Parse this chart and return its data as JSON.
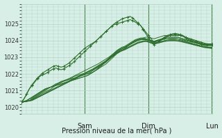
{
  "bg_color": "#d8efe8",
  "grid_color": "#b0d4c4",
  "line_color": "#2d6e2d",
  "xlabel": "Pression niveau de la mer( hPa )",
  "ylim": [
    1019.6,
    1026.2
  ],
  "yticks": [
    1020,
    1021,
    1022,
    1023,
    1024,
    1025
  ],
  "day_labels": [
    "Sam",
    "Dim",
    "Lun"
  ],
  "day_positions": [
    0.333,
    0.666,
    0.999
  ],
  "total_points": 73,
  "series": [
    [
      1020.3,
      1020.35,
      1020.4,
      1020.5,
      1020.6,
      1020.7,
      1020.8,
      1020.9,
      1021.0,
      1021.1,
      1021.15,
      1021.2,
      1021.3,
      1021.4,
      1021.45,
      1021.5,
      1021.55,
      1021.6,
      1021.65,
      1021.7,
      1021.75,
      1021.8,
      1021.85,
      1021.9,
      1021.95,
      1022.0,
      1022.1,
      1022.2,
      1022.3,
      1022.4,
      1022.5,
      1022.6,
      1022.7,
      1022.85,
      1023.0,
      1023.15,
      1023.3,
      1023.4,
      1023.5,
      1023.6,
      1023.7,
      1023.8,
      1023.9,
      1024.0,
      1024.05,
      1024.1,
      1024.15,
      1024.2,
      1024.2,
      1024.15,
      1024.1,
      1024.15,
      1024.2,
      1024.25,
      1024.3,
      1024.3,
      1024.3,
      1024.3,
      1024.3,
      1024.3,
      1024.3,
      1024.25,
      1024.2,
      1024.15,
      1024.1,
      1024.05,
      1024.0,
      1023.95,
      1023.9,
      1023.85,
      1023.8,
      1023.8,
      1023.8
    ],
    [
      1020.3,
      1020.35,
      1020.4,
      1020.5,
      1020.6,
      1020.7,
      1020.8,
      1020.9,
      1021.0,
      1021.1,
      1021.15,
      1021.2,
      1021.25,
      1021.35,
      1021.45,
      1021.55,
      1021.6,
      1021.65,
      1021.7,
      1021.75,
      1021.85,
      1021.9,
      1021.95,
      1022.0,
      1022.0,
      1022.0,
      1022.05,
      1022.1,
      1022.2,
      1022.3,
      1022.4,
      1022.5,
      1022.6,
      1022.75,
      1022.9,
      1023.05,
      1023.2,
      1023.3,
      1023.4,
      1023.5,
      1023.65,
      1023.8,
      1023.9,
      1024.0,
      1024.05,
      1024.1,
      1024.1,
      1024.1,
      1024.05,
      1024.0,
      1023.95,
      1024.0,
      1024.05,
      1024.1,
      1024.15,
      1024.2,
      1024.2,
      1024.2,
      1024.2,
      1024.2,
      1024.15,
      1024.1,
      1024.05,
      1024.0,
      1023.95,
      1023.9,
      1023.9,
      1023.85,
      1023.8,
      1023.75,
      1023.75,
      1023.75,
      1023.75
    ],
    [
      1020.3,
      1020.35,
      1020.4,
      1020.5,
      1020.55,
      1020.65,
      1020.75,
      1020.85,
      1020.95,
      1021.05,
      1021.15,
      1021.2,
      1021.25,
      1021.3,
      1021.35,
      1021.4,
      1021.45,
      1021.5,
      1021.55,
      1021.6,
      1021.65,
      1021.7,
      1021.75,
      1021.8,
      1021.85,
      1021.9,
      1022.0,
      1022.1,
      1022.2,
      1022.3,
      1022.45,
      1022.6,
      1022.75,
      1022.9,
      1023.05,
      1023.2,
      1023.35,
      1023.45,
      1023.5,
      1023.55,
      1023.65,
      1023.75,
      1023.85,
      1023.95,
      1024.0,
      1024.05,
      1024.05,
      1024.05,
      1024.0,
      1023.95,
      1023.9,
      1023.95,
      1024.0,
      1024.05,
      1024.1,
      1024.1,
      1024.1,
      1024.1,
      1024.1,
      1024.1,
      1024.05,
      1024.0,
      1023.95,
      1023.9,
      1023.85,
      1023.8,
      1023.75,
      1023.7,
      1023.65,
      1023.6,
      1023.6,
      1023.6,
      1023.6
    ],
    [
      1020.3,
      1020.33,
      1020.36,
      1020.4,
      1020.5,
      1020.6,
      1020.7,
      1020.8,
      1020.9,
      1021.0,
      1021.1,
      1021.2,
      1021.25,
      1021.3,
      1021.35,
      1021.4,
      1021.45,
      1021.5,
      1021.55,
      1021.6,
      1021.65,
      1021.7,
      1021.75,
      1021.8,
      1021.85,
      1021.9,
      1022.0,
      1022.1,
      1022.2,
      1022.35,
      1022.5,
      1022.65,
      1022.8,
      1022.95,
      1023.1,
      1023.25,
      1023.4,
      1023.5,
      1023.6,
      1023.65,
      1023.75,
      1023.85,
      1023.95,
      1024.05,
      1024.1,
      1024.15,
      1024.15,
      1024.1,
      1024.05,
      1024.0,
      1023.95,
      1024.0,
      1024.05,
      1024.1,
      1024.15,
      1024.2,
      1024.2,
      1024.2,
      1024.2,
      1024.2,
      1024.15,
      1024.1,
      1024.05,
      1024.0,
      1023.95,
      1023.9,
      1023.85,
      1023.8,
      1023.75,
      1023.7,
      1023.7,
      1023.7,
      1023.7
    ],
    [
      1020.3,
      1020.33,
      1020.36,
      1020.4,
      1020.48,
      1020.56,
      1020.65,
      1020.74,
      1020.83,
      1020.92,
      1021.0,
      1021.08,
      1021.2,
      1021.32,
      1021.4,
      1021.48,
      1021.56,
      1021.64,
      1021.72,
      1021.8,
      1021.88,
      1021.96,
      1022.04,
      1022.12,
      1022.2,
      1022.28,
      1022.36,
      1022.44,
      1022.52,
      1022.6,
      1022.7,
      1022.8,
      1022.9,
      1023.0,
      1023.12,
      1023.24,
      1023.36,
      1023.48,
      1023.56,
      1023.6,
      1023.68,
      1023.76,
      1023.84,
      1023.92,
      1024.0,
      1024.04,
      1024.08,
      1024.08,
      1024.04,
      1024.0,
      1023.92,
      1023.96,
      1024.0,
      1024.04,
      1024.08,
      1024.1,
      1024.12,
      1024.12,
      1024.12,
      1024.1,
      1024.08,
      1024.04,
      1024.0,
      1023.96,
      1023.92,
      1023.88,
      1023.84,
      1023.8,
      1023.76,
      1023.72,
      1023.7,
      1023.7,
      1023.7
    ],
    [
      1020.3,
      1020.33,
      1020.36,
      1020.4,
      1020.45,
      1020.52,
      1020.6,
      1020.68,
      1020.76,
      1020.85,
      1020.94,
      1021.02,
      1021.1,
      1021.18,
      1021.26,
      1021.34,
      1021.42,
      1021.5,
      1021.58,
      1021.66,
      1021.74,
      1021.82,
      1021.9,
      1021.98,
      1022.06,
      1022.14,
      1022.22,
      1022.3,
      1022.4,
      1022.5,
      1022.6,
      1022.7,
      1022.8,
      1022.92,
      1023.04,
      1023.16,
      1023.28,
      1023.38,
      1023.44,
      1023.5,
      1023.58,
      1023.66,
      1023.74,
      1023.82,
      1023.9,
      1023.94,
      1023.98,
      1024.0,
      1023.96,
      1023.9,
      1023.84,
      1023.88,
      1023.92,
      1023.96,
      1024.0,
      1024.02,
      1024.04,
      1024.04,
      1024.04,
      1024.02,
      1024.0,
      1023.96,
      1023.92,
      1023.88,
      1023.84,
      1023.8,
      1023.76,
      1023.72,
      1023.68,
      1023.64,
      1023.62,
      1023.6,
      1023.6
    ],
    [
      1020.3,
      1020.32,
      1020.35,
      1020.38,
      1020.42,
      1020.5,
      1020.58,
      1020.66,
      1020.74,
      1020.82,
      1020.9,
      1020.98,
      1021.06,
      1021.14,
      1021.22,
      1021.3,
      1021.38,
      1021.46,
      1021.54,
      1021.62,
      1021.7,
      1021.78,
      1021.86,
      1021.94,
      1022.02,
      1022.1,
      1022.18,
      1022.26,
      1022.36,
      1022.46,
      1022.56,
      1022.66,
      1022.76,
      1022.88,
      1023.0,
      1023.12,
      1023.24,
      1023.34,
      1023.4,
      1023.46,
      1023.54,
      1023.62,
      1023.7,
      1023.78,
      1023.86,
      1023.9,
      1023.94,
      1023.96,
      1023.92,
      1023.86,
      1023.8,
      1023.84,
      1023.88,
      1023.92,
      1023.96,
      1023.98,
      1024.0,
      1024.0,
      1024.0,
      1023.98,
      1023.96,
      1023.92,
      1023.88,
      1023.84,
      1023.8,
      1023.76,
      1023.72,
      1023.68,
      1023.64,
      1023.6,
      1023.58,
      1023.56,
      1023.55
    ],
    [
      1020.3,
      1020.32,
      1020.34,
      1020.37,
      1020.4,
      1020.48,
      1020.56,
      1020.64,
      1020.72,
      1020.8,
      1020.88,
      1020.96,
      1021.04,
      1021.12,
      1021.2,
      1021.28,
      1021.36,
      1021.44,
      1021.52,
      1021.6,
      1021.68,
      1021.76,
      1021.84,
      1021.92,
      1022.0,
      1022.08,
      1022.16,
      1022.24,
      1022.34,
      1022.44,
      1022.54,
      1022.64,
      1022.74,
      1022.86,
      1022.98,
      1023.1,
      1023.22,
      1023.32,
      1023.38,
      1023.44,
      1023.52,
      1023.6,
      1023.68,
      1023.76,
      1023.84,
      1023.88,
      1023.92,
      1023.94,
      1023.9,
      1023.84,
      1023.78,
      1023.82,
      1023.86,
      1023.9,
      1023.94,
      1023.96,
      1023.98,
      1023.98,
      1023.98,
      1023.96,
      1023.94,
      1023.9,
      1023.86,
      1023.82,
      1023.78,
      1023.74,
      1023.7,
      1023.66,
      1023.62,
      1023.58,
      1023.56,
      1023.54,
      1023.52
    ]
  ],
  "bump_series": [
    [
      1020.3,
      1020.5,
      1020.8,
      1021.1,
      1021.3,
      1021.5,
      1021.7,
      1021.85,
      1021.95,
      1022.0,
      1022.1,
      1022.2,
      1022.3,
      1022.35,
      1022.3,
      1022.25,
      1022.3,
      1022.4,
      1022.5,
      1022.6,
      1022.75,
      1022.9,
      1023.05,
      1023.2,
      1023.35,
      1023.5,
      1023.65,
      1023.8,
      1023.95,
      1024.1,
      1024.25,
      1024.4,
      1024.55,
      1024.7,
      1024.85,
      1024.95,
      1025.0,
      1025.05,
      1025.1,
      1025.15,
      1025.2,
      1025.25,
      1025.2,
      1025.1,
      1025.0,
      1024.9,
      1024.7,
      1024.5,
      1024.3,
      1024.1,
      1023.9,
      1023.95,
      1024.0,
      1024.1,
      1024.2,
      1024.3,
      1024.35,
      1024.4,
      1024.42,
      1024.4,
      1024.35,
      1024.3,
      1024.2,
      1024.1,
      1024.05,
      1024.0,
      1023.95,
      1023.9,
      1023.85,
      1023.8,
      1023.8,
      1023.8,
      1023.8
    ],
    [
      1020.3,
      1020.5,
      1020.8,
      1021.1,
      1021.35,
      1021.55,
      1021.75,
      1021.9,
      1022.05,
      1022.15,
      1022.25,
      1022.35,
      1022.45,
      1022.5,
      1022.45,
      1022.4,
      1022.45,
      1022.55,
      1022.65,
      1022.8,
      1022.95,
      1023.1,
      1023.25,
      1023.4,
      1023.55,
      1023.65,
      1023.75,
      1023.85,
      1023.95,
      1024.1,
      1024.25,
      1024.4,
      1024.55,
      1024.7,
      1024.85,
      1025.0,
      1025.1,
      1025.2,
      1025.3,
      1025.35,
      1025.4,
      1025.45,
      1025.35,
      1025.2,
      1025.05,
      1024.9,
      1024.65,
      1024.4,
      1024.15,
      1023.95,
      1023.75,
      1023.85,
      1023.95,
      1024.05,
      1024.15,
      1024.25,
      1024.3,
      1024.35,
      1024.38,
      1024.35,
      1024.3,
      1024.25,
      1024.15,
      1024.05,
      1024.0,
      1023.95,
      1023.9,
      1023.85,
      1023.8,
      1023.75,
      1023.75,
      1023.75,
      1023.75
    ]
  ]
}
